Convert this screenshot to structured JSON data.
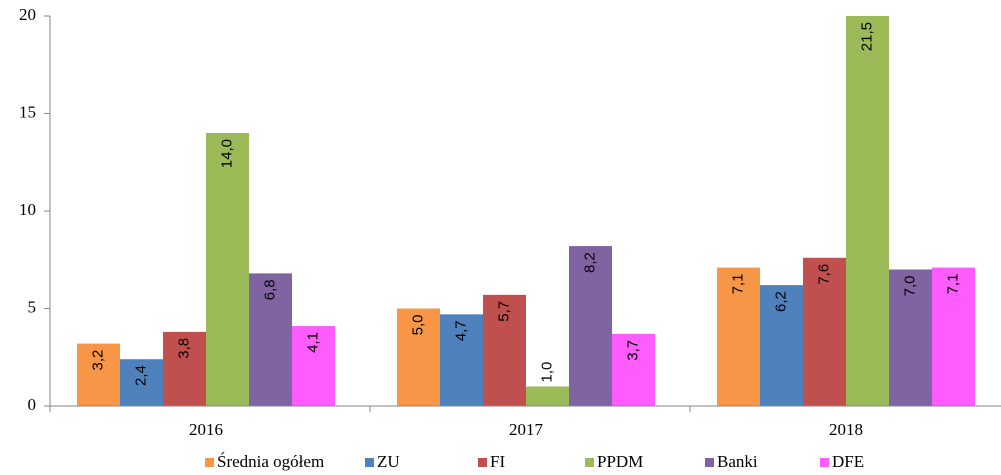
{
  "chart_data": {
    "type": "bar",
    "categories": [
      "2016",
      "2017",
      "2018"
    ],
    "series": [
      {
        "name": "Średnia ogółem",
        "color": "#f79646",
        "values": [
          3.2,
          5.0,
          7.1
        ],
        "value_labels": [
          "3,2",
          "5,0",
          "7,1"
        ]
      },
      {
        "name": "ZU",
        "color": "#4f81bd",
        "values": [
          2.4,
          4.7,
          6.2
        ],
        "value_labels": [
          "2,4",
          "4,7",
          "6,2"
        ]
      },
      {
        "name": "FI",
        "color": "#c0504d",
        "values": [
          3.8,
          5.7,
          7.6
        ],
        "value_labels": [
          "3,8",
          "5,7",
          "7,6"
        ]
      },
      {
        "name": "PPDM",
        "color": "#9bbb59",
        "values": [
          14.0,
          1.0,
          21.5
        ],
        "value_labels": [
          "14,0",
          "1,0",
          "21,5"
        ]
      },
      {
        "name": "Banki",
        "color": "#8064a2",
        "values": [
          6.8,
          8.2,
          7.0
        ],
        "value_labels": [
          "6,8",
          "8,2",
          "7,0"
        ]
      },
      {
        "name": "DFE",
        "color": "#ff5cff",
        "values": [
          4.1,
          3.7,
          7.1
        ],
        "value_labels": [
          "4,1",
          "3,7",
          "7,1"
        ]
      }
    ],
    "ylim": [
      0,
      20
    ],
    "yticks": [
      0,
      5,
      10,
      15,
      20
    ],
    "grid": false,
    "legend": "bottom"
  }
}
